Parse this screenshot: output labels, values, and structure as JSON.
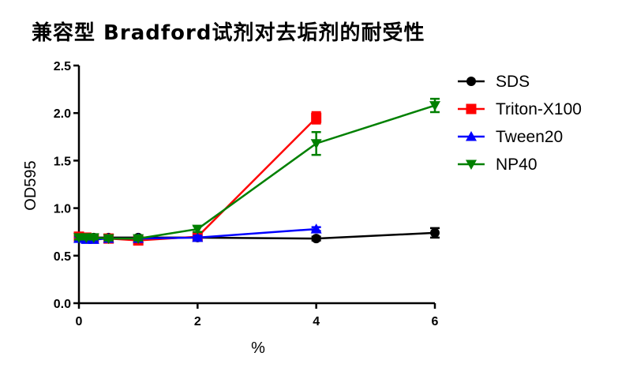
{
  "chart_data": {
    "type": "line",
    "title": "兼容型 Bradford试剂对去垢剂的耐受性",
    "xlabel": "%",
    "ylabel": "OD595",
    "xlim": [
      0,
      6
    ],
    "ylim": [
      0,
      2.5
    ],
    "x_ticks": [
      "0",
      "2",
      "4",
      "6"
    ],
    "y_ticks": [
      "0.0",
      "0.5",
      "1.0",
      "1.5",
      "2.0",
      "2.5"
    ],
    "legend_position": "right",
    "grid": false,
    "series": [
      {
        "name": "SDS",
        "color": "#000000",
        "marker": "circle",
        "x": [
          0,
          0.125,
          0.25,
          0.5,
          1,
          2,
          4,
          6
        ],
        "y": [
          0.7,
          0.69,
          0.69,
          0.69,
          0.69,
          0.69,
          0.68,
          0.74
        ],
        "err": [
          0.02,
          0.02,
          0.02,
          0.02,
          0.02,
          0.02,
          0.02,
          0.05
        ]
      },
      {
        "name": "Triton-X100",
        "color": "#ff0000",
        "marker": "square",
        "x": [
          0,
          0.125,
          0.25,
          0.5,
          1,
          2,
          4
        ],
        "y": [
          0.7,
          0.69,
          0.68,
          0.68,
          0.66,
          0.7,
          1.95
        ],
        "err": [
          0.02,
          0.02,
          0.02,
          0.02,
          0.02,
          0.02,
          0.06
        ]
      },
      {
        "name": "Tween20",
        "color": "#0000ff",
        "marker": "triangle-up",
        "x": [
          0,
          0.125,
          0.25,
          0.5,
          1,
          2,
          4
        ],
        "y": [
          0.68,
          0.67,
          0.67,
          0.68,
          0.68,
          0.69,
          0.78
        ],
        "err": [
          0.02,
          0.02,
          0.02,
          0.02,
          0.02,
          0.02,
          0.02
        ]
      },
      {
        "name": "NP40",
        "color": "#008000",
        "marker": "triangle-down",
        "x": [
          0,
          0.125,
          0.25,
          0.5,
          1,
          2,
          4,
          6
        ],
        "y": [
          0.69,
          0.69,
          0.69,
          0.68,
          0.68,
          0.78,
          1.68,
          2.08
        ],
        "err": [
          0.02,
          0.02,
          0.02,
          0.02,
          0.02,
          0.03,
          0.12,
          0.07
        ]
      }
    ]
  }
}
